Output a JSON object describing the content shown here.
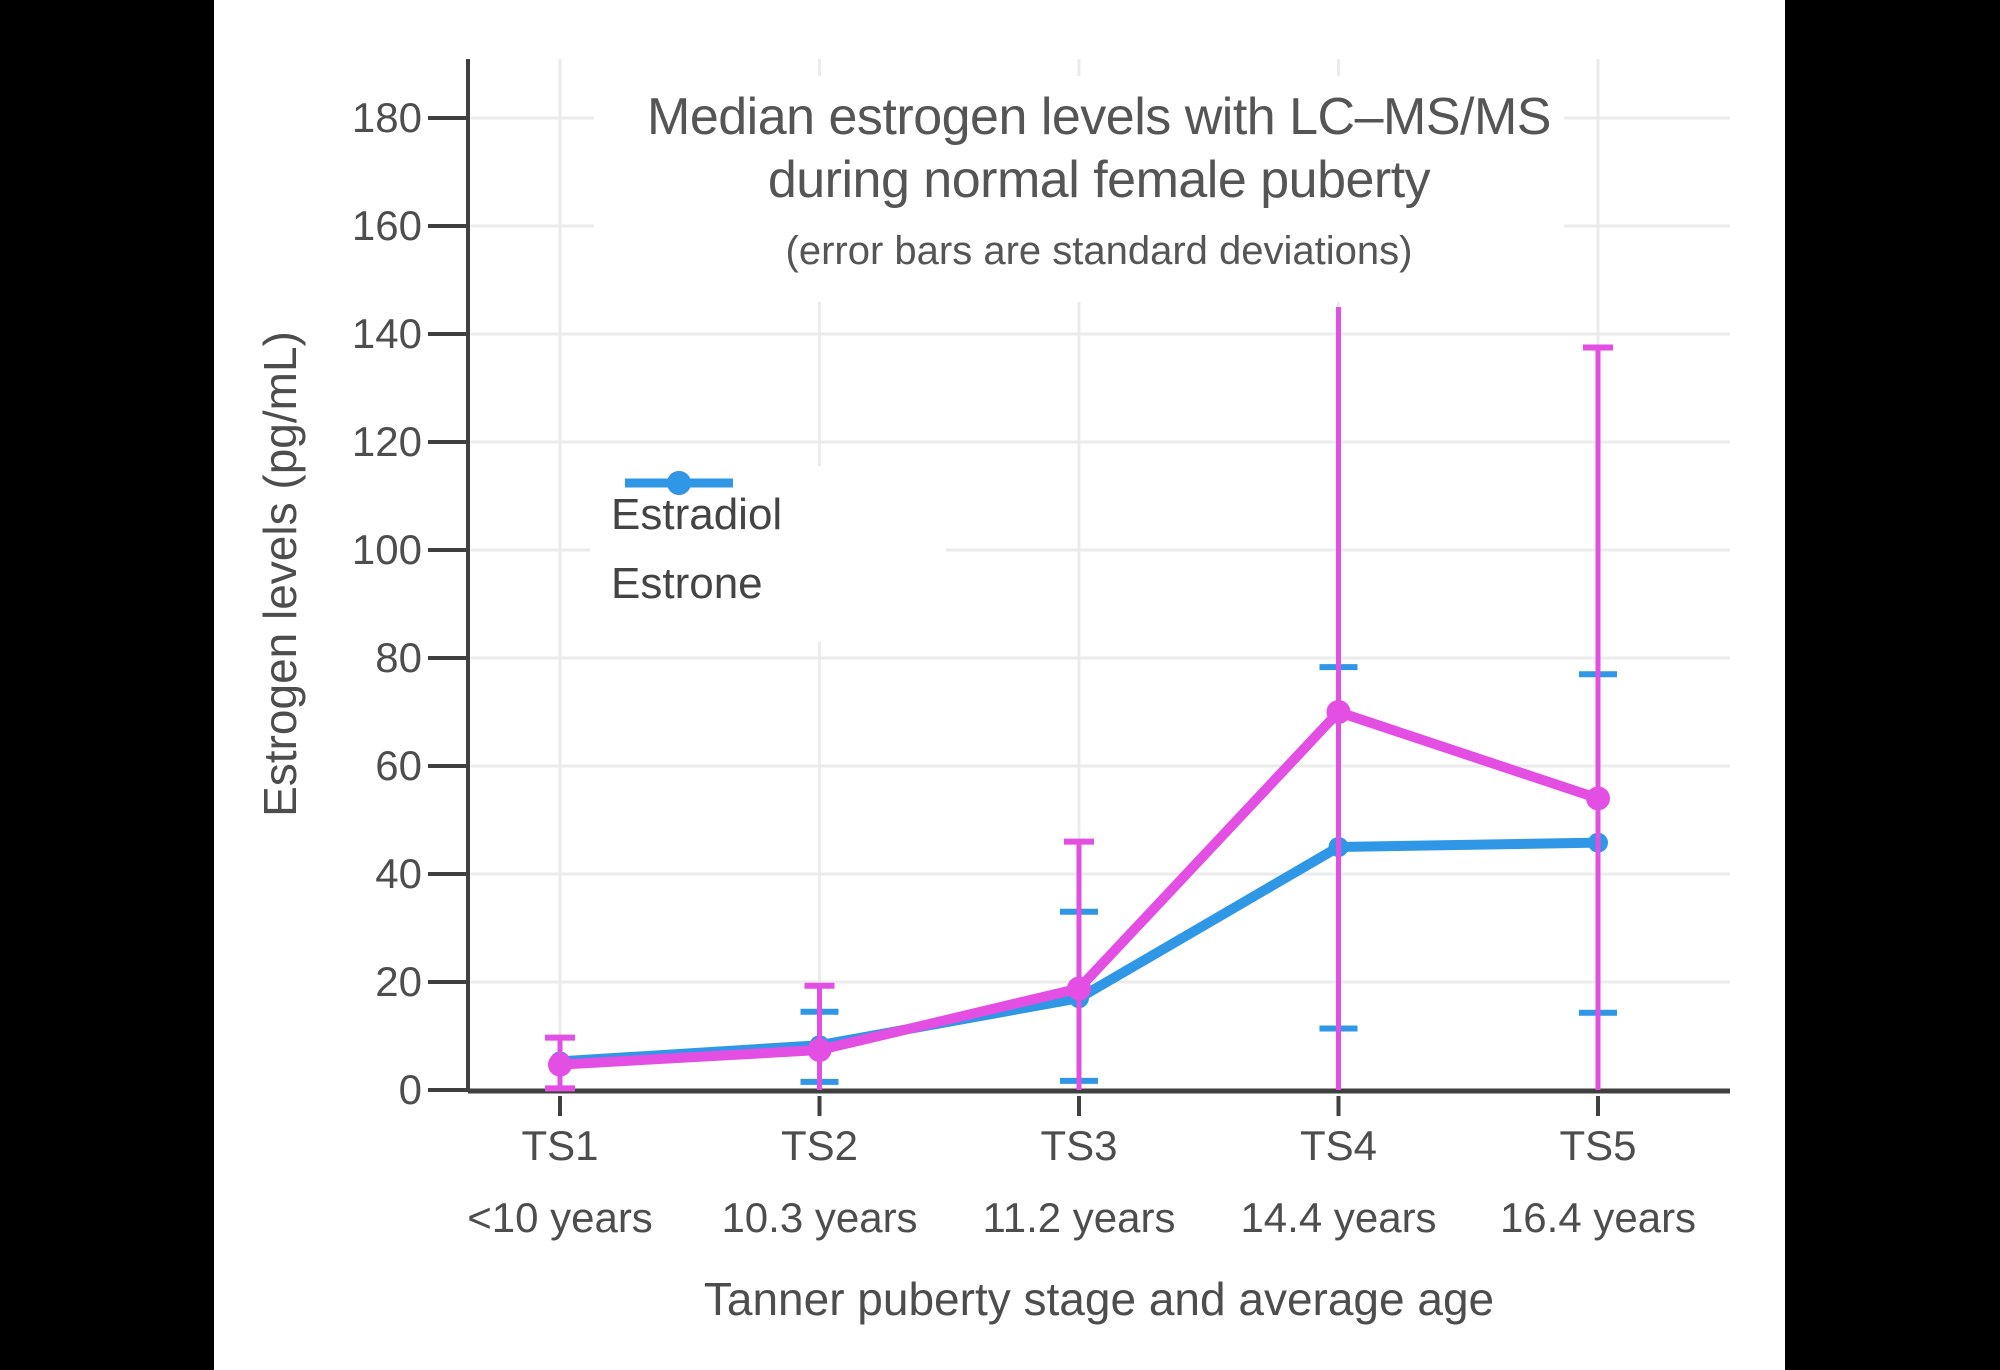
{
  "chart_data": {
    "type": "line",
    "title_line1": "Median estrogen levels with LC–MS/MS",
    "title_line2": "during normal female puberty",
    "subtitle": "(error bars are standard deviations)",
    "xlabel": "Tanner puberty stage and average age",
    "ylabel": "Estrogen levels (pg/mL)",
    "categories": [
      "TS1",
      "TS2",
      "TS3",
      "TS4",
      "TS5"
    ],
    "category_ages": [
      "<10 years",
      "10.3 years",
      "11.2 years",
      "14.4 years",
      "16.4 years"
    ],
    "yticks": [
      0,
      20,
      40,
      60,
      80,
      100,
      120,
      140,
      160,
      180
    ],
    "ylim": [
      0,
      191
    ],
    "grid": true,
    "legend_position": "inside-upper-left",
    "error_bar_note": "error bars are standard deviations; bottoms clipped at 0 where they would go negative",
    "series": [
      {
        "name": "Estrone",
        "color": "#2F97E6",
        "values": [
          5.3,
          8.3,
          17,
          45,
          45.8
        ],
        "error_top": [
          null,
          14.5,
          33,
          78.3,
          77
        ],
        "error_bottom": [
          null,
          1.5,
          1.7,
          11.4,
          14.3
        ],
        "cap_top": [
          false,
          true,
          true,
          true,
          true
        ],
        "cap_bottom": [
          false,
          true,
          true,
          true,
          true
        ]
      },
      {
        "name": "Estradiol",
        "color": "#E24FE2",
        "values": [
          4.7,
          7.4,
          18.8,
          70,
          54
        ],
        "error_top": [
          9.7,
          19.3,
          46,
          145,
          137.5
        ],
        "error_bottom": [
          0.3,
          0,
          0,
          0,
          0
        ],
        "cap_top": [
          true,
          true,
          true,
          false,
          true
        ],
        "cap_bottom": [
          true,
          false,
          false,
          false,
          false
        ]
      }
    ],
    "legend_order": [
      "Estradiol",
      "Estrone"
    ]
  }
}
